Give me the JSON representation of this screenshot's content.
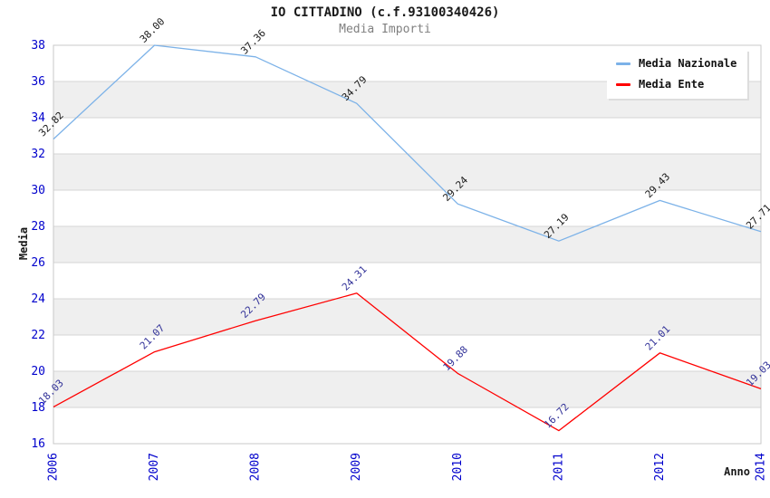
{
  "title": "IO CITTADINO (c.f.93100340426)",
  "subtitle": "Media Importi",
  "colors": {
    "tick": "#0000cc",
    "grid": "#d6d6d6",
    "band": "#efefef",
    "border": "#c9c9c9",
    "axis_line": "#999999",
    "title": "#1a1a1a",
    "subtitle": "#808080",
    "nazionale_line": "#7cb2e8",
    "ente_line": "#ff0000",
    "nazionale_label": "#1a1a1a",
    "ente_label": "#333399"
  },
  "chart_data": {
    "type": "line",
    "title": "IO CITTADINO (c.f.93100340426)",
    "subtitle": "Media Importi",
    "xlabel": "Anno",
    "ylabel": "Media",
    "grid": true,
    "legend_position": "top-right",
    "ylim": [
      16,
      38
    ],
    "y_ticks": [
      16,
      18,
      20,
      22,
      24,
      26,
      28,
      30,
      32,
      34,
      36,
      38
    ],
    "categories": [
      "2006",
      "2007",
      "2008",
      "2009",
      "2010",
      "2011",
      "2012",
      "2014"
    ],
    "series": [
      {
        "name": "Media Nazionale",
        "color": "#7cb2e8",
        "label_color": "#1a1a1a",
        "values": [
          32.82,
          38.0,
          37.36,
          34.79,
          29.24,
          27.19,
          29.43,
          27.71
        ],
        "labels": [
          "32.82",
          "38.00",
          "37.36",
          "34.79",
          "29.24",
          "27.19",
          "29.43",
          "27.71"
        ]
      },
      {
        "name": "Media Ente",
        "color": "#ff0000",
        "label_color": "#333399",
        "values": [
          18.03,
          21.07,
          22.79,
          24.31,
          19.88,
          16.72,
          21.01,
          19.03
        ],
        "labels": [
          "18.03",
          "21.07",
          "22.79",
          "24.31",
          "19.88",
          "16.72",
          "21.01",
          "19.03"
        ]
      }
    ]
  }
}
